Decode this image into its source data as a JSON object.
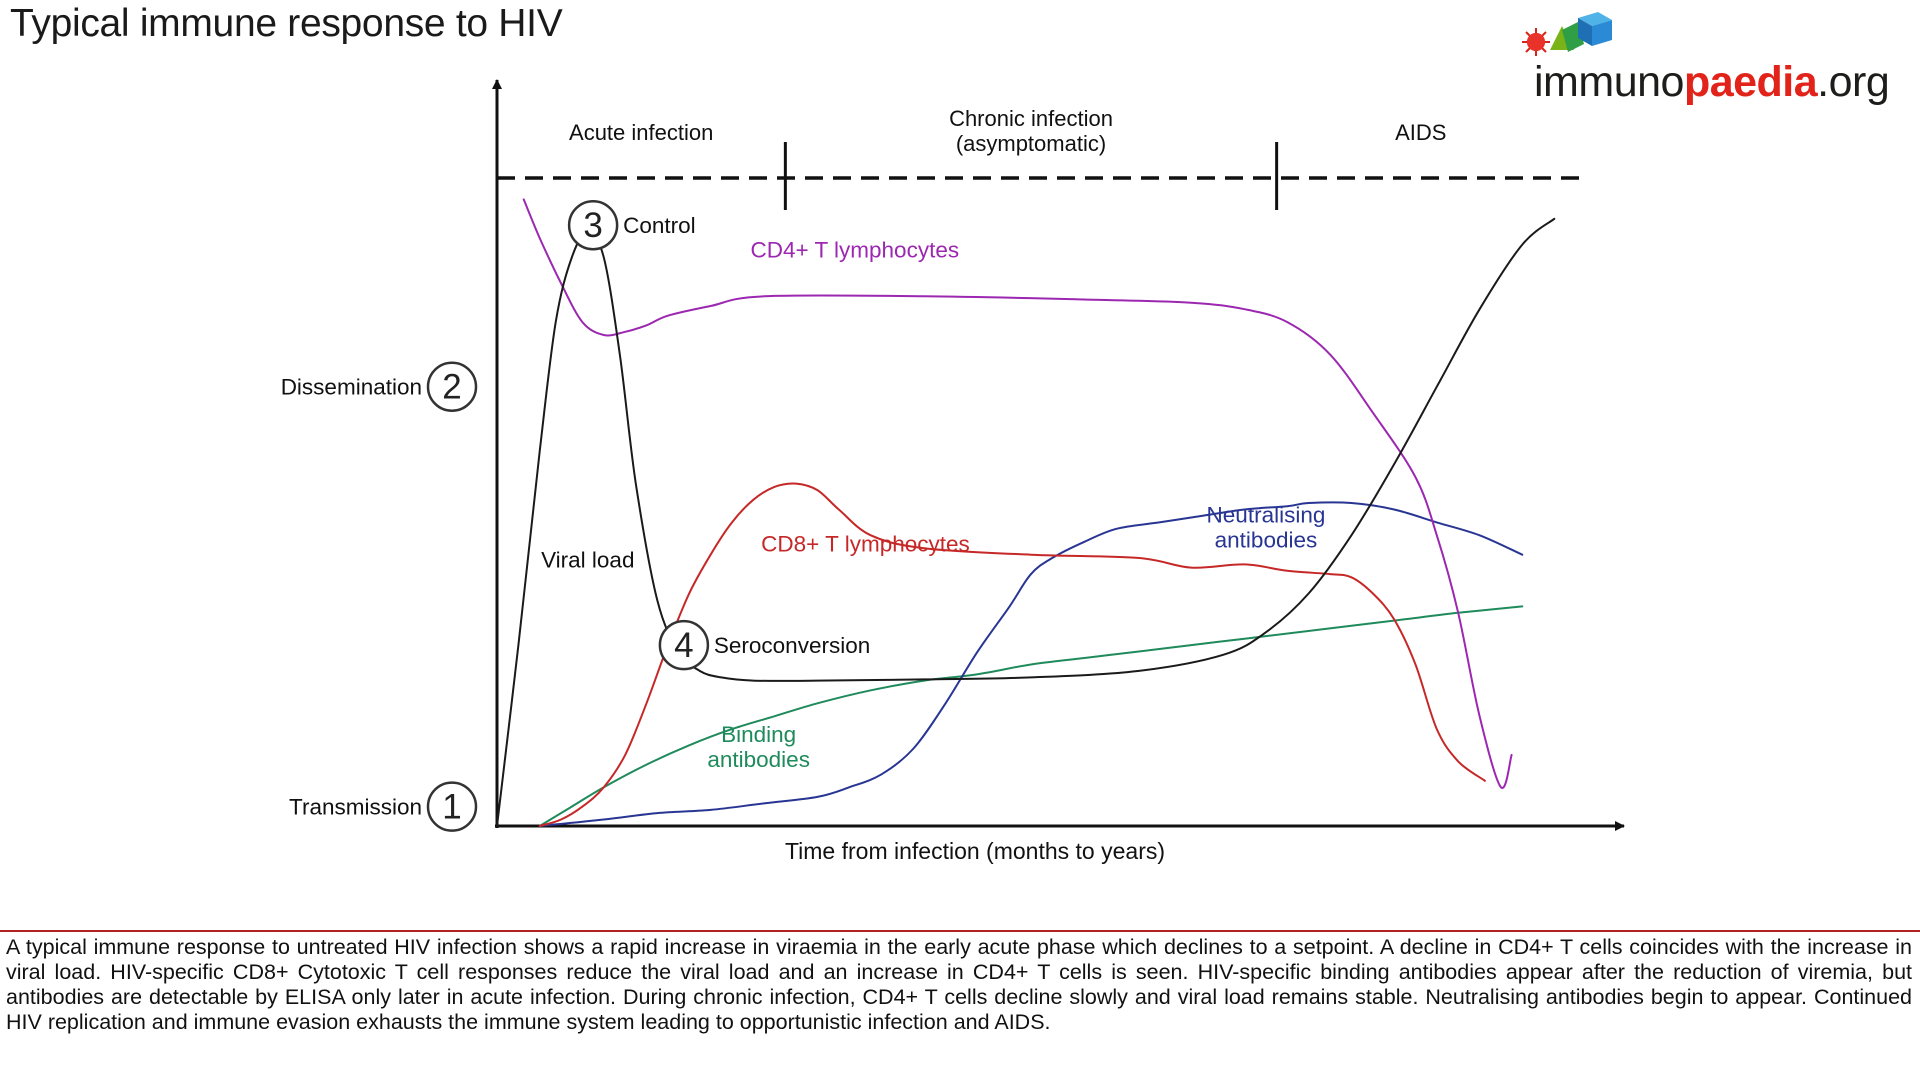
{
  "page": {
    "title": "Typical immune response to HIV",
    "logo": {
      "prefix": "immuno",
      "accent": "paedia",
      "suffix": ".org",
      "accent_color": "#e2231a"
    },
    "caption": "A typical immune response to untreated HIV infection shows a rapid increase in viraemia in the early acute phase which declines to a setpoint. A decline in CD4+ T cells coincides with the increase in viral load. HIV-specific CD8+ Cytotoxic T cell responses reduce the viral load and an increase in CD4+ T cells is seen. HIV-specific binding antibodies appear after the reduction of viremia, but antibodies are detectable by ELISA only later in acute infection. During chronic infection, CD4+ T cells decline slowly and viral load remains stable. Neutralising antibodies begin to appear. Continued HIV replication and immune evasion exhausts the immune system leading to opportunistic infection and AIDS."
  },
  "chart_data": {
    "type": "line",
    "title": "Typical immune response to HIV",
    "xlabel": "Time from infection (months to years)",
    "ylabel": "",
    "xlim": [
      0,
      100
    ],
    "ylim": [
      0,
      100
    ],
    "grid": false,
    "phases": [
      {
        "label": "Acute infection",
        "start": 0,
        "end": 27
      },
      {
        "label": "Chronic infection\n(asymptomatic)",
        "start": 27,
        "end": 73
      },
      {
        "label": "AIDS",
        "start": 73,
        "end": 100
      }
    ],
    "series": [
      {
        "name": "Viral load",
        "color": "#1a1a1a",
        "x": [
          0,
          2,
          4,
          5.5,
          7,
          8.5,
          10,
          11.5,
          13,
          15,
          17,
          19,
          21,
          24,
          30,
          40,
          50,
          60,
          68,
          72,
          76,
          80,
          84,
          88,
          92,
          96,
          99
        ],
        "y": [
          0,
          28,
          58,
          78,
          88,
          92,
          88,
          73,
          53,
          35,
          27,
          24,
          23,
          22.5,
          22.5,
          22.7,
          23,
          24,
          26.5,
          30,
          36,
          45,
          56,
          68,
          80,
          90,
          94
        ]
      },
      {
        "name": "CD4+ T lymphocytes",
        "color": "#9c27b0",
        "x": [
          2.5,
          4,
          6,
          8,
          10,
          12,
          14,
          16,
          20,
          25,
          40,
          55,
          65,
          70,
          74,
          78,
          82,
          86,
          88,
          90,
          92,
          94,
          95
        ],
        "y": [
          97,
          91,
          84,
          78,
          76,
          76.5,
          77.5,
          79,
          80.5,
          82,
          82,
          81.5,
          81,
          80,
          78,
          73,
          64,
          54,
          45,
          33,
          17,
          6,
          11
        ]
      },
      {
        "name": "CD8+ T lymphocytes",
        "color": "#c62828",
        "x": [
          4,
          6,
          8,
          10,
          12,
          14,
          16,
          18,
          20,
          22,
          24,
          26,
          28,
          30,
          32,
          35,
          40,
          50,
          60,
          65,
          70,
          74,
          78,
          80,
          82,
          84,
          86,
          88,
          90,
          92.5
        ],
        "y": [
          0,
          1,
          3,
          6,
          11,
          19,
          28,
          36,
          42,
          47,
          50.5,
          52.5,
          53,
          52,
          49,
          45,
          43,
          42,
          41.5,
          40,
          40.5,
          39.5,
          39,
          38.5,
          36,
          32,
          25,
          15,
          10,
          7
        ]
      },
      {
        "name": "Binding antibodies",
        "color": "#1f8a5b",
        "x": [
          4,
          7,
          10,
          14,
          18,
          22,
          26,
          30,
          35,
          40,
          45,
          50,
          55,
          60,
          65,
          70,
          75,
          80,
          85,
          90,
          96
        ],
        "y": [
          0,
          3,
          6,
          9.5,
          12.5,
          15,
          17,
          19,
          21,
          22.5,
          23.5,
          25,
          26,
          27,
          28,
          29,
          30,
          31,
          32,
          33,
          34
        ]
      },
      {
        "name": "Neutralising antibodies",
        "color": "#283593",
        "x": [
          4,
          10,
          15,
          20,
          25,
          30,
          33,
          36,
          39,
          42,
          45,
          48,
          50,
          52,
          55,
          58,
          62,
          66,
          70,
          74,
          76,
          80,
          84,
          88,
          92,
          96
        ],
        "y": [
          0,
          1,
          2,
          2.5,
          3.5,
          4.5,
          6,
          8,
          12,
          19,
          27,
          34,
          39,
          41.5,
          44,
          46,
          47,
          48,
          49,
          49.5,
          50,
          50,
          49,
          47,
          45,
          42
        ]
      }
    ],
    "annotations": [
      {
        "label": "Transmission",
        "number": "1",
        "x": 0,
        "y": 3
      },
      {
        "label": "Dissemination",
        "number": "2",
        "x": 0,
        "y": 68
      },
      {
        "label": "Control",
        "number": "3",
        "x": 9,
        "y": 93
      },
      {
        "label": "Seroconversion",
        "number": "4",
        "x": 17.5,
        "y": 28
      }
    ]
  }
}
